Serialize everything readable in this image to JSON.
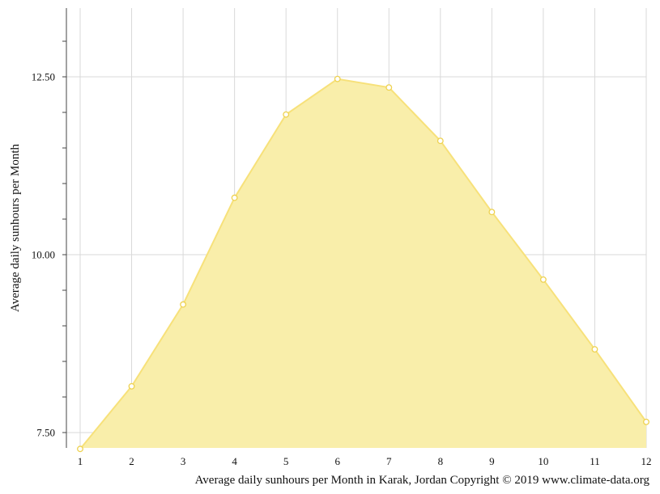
{
  "chart_data": {
    "type": "area",
    "ylabel": "Average daily sunhours per Month",
    "caption": "Average daily sunhours per Month in Karak, Jordan Copyright © 2019 www.climate-data.org",
    "x": [
      1,
      2,
      3,
      4,
      5,
      6,
      7,
      8,
      9,
      10,
      11,
      12
    ],
    "x_tick_labels": [
      "1",
      "2",
      "3",
      "4",
      "5",
      "6",
      "7",
      "8",
      "9",
      "10",
      "11",
      "12"
    ],
    "y_tick_labels": [
      "7.50",
      "10.00",
      "12.50"
    ],
    "y_ticks": [
      7.5,
      10.0,
      12.5
    ],
    "ylim": [
      7.27,
      13.5
    ],
    "grid": true,
    "colors": {
      "fill": "#f9eeaa",
      "line": "#f7e17a",
      "marker_stroke": "#eed250",
      "marker_fill": "#ffffff",
      "grid": "#d9d9d9"
    },
    "series": [
      {
        "values": [
          7.27,
          8.15,
          9.3,
          10.8,
          11.97,
          12.47,
          12.35,
          11.6,
          10.6,
          9.65,
          8.67,
          7.65
        ]
      }
    ]
  }
}
